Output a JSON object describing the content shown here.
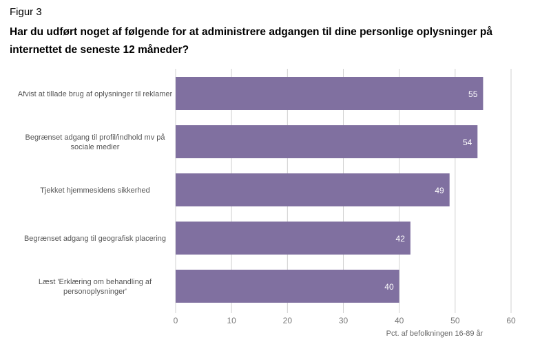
{
  "figure_label": "Figur 3",
  "chart_data": {
    "type": "bar",
    "orientation": "horizontal",
    "title": "Har du udført noget af følgende for at administrere adgangen til dine personlige oplysninger på internettet de seneste 12 måneder?",
    "categories": [
      [
        "Afvist at tillade brug af oplysninger til reklamer"
      ],
      [
        "Begrænset adgang til profil/indhold mv på",
        "sociale medier"
      ],
      [
        "Tjekket hjemmesidens sikkerhed"
      ],
      [
        "Begrænset adgang til geografisk placering"
      ],
      [
        "Læst 'Erklæring om behandling af",
        "personoplysninger'"
      ]
    ],
    "values": [
      55,
      54,
      49,
      42,
      40
    ],
    "data_labels": [
      "55",
      "54",
      "49",
      "42",
      "40"
    ],
    "xlabel": "Pct. af befolkningen 16-89 år",
    "xlim": [
      0,
      60
    ],
    "xticks": [
      "0",
      "10",
      "20",
      "30",
      "40",
      "50",
      "60"
    ],
    "grid": true,
    "bar_color": "#8070a0"
  }
}
